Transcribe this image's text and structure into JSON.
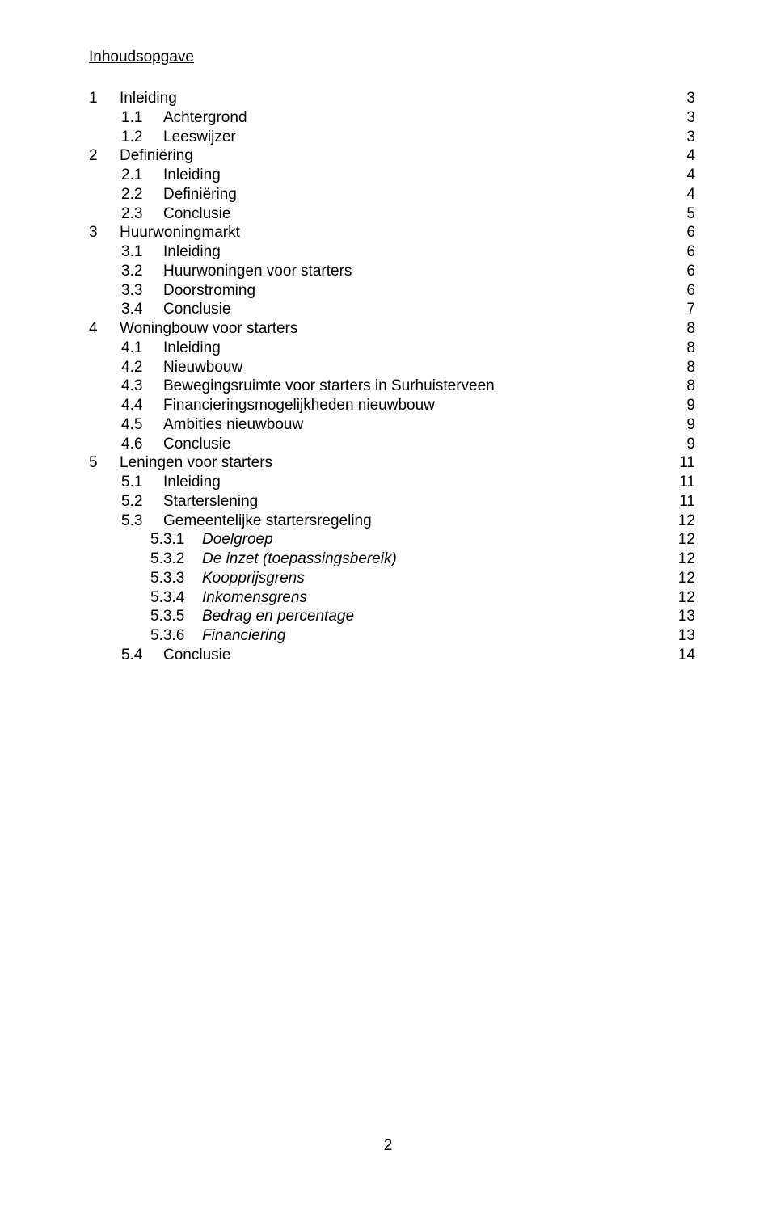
{
  "title": "Inhoudsopgave",
  "page_number": "2",
  "toc": [
    {
      "level": 1,
      "num": "1",
      "label": "Inleiding",
      "page": "3",
      "italic": false
    },
    {
      "level": 2,
      "num": "1.1",
      "label": "Achtergrond",
      "page": "3",
      "italic": false
    },
    {
      "level": 2,
      "num": "1.2",
      "label": "Leeswijzer",
      "page": "3",
      "italic": false
    },
    {
      "level": 1,
      "num": "2",
      "label": "Definiëring",
      "page": "4",
      "italic": false
    },
    {
      "level": 2,
      "num": "2.1",
      "label": "Inleiding",
      "page": "4",
      "italic": false
    },
    {
      "level": 2,
      "num": "2.2",
      "label": "Definiëring",
      "page": "4",
      "italic": false
    },
    {
      "level": 2,
      "num": "2.3",
      "label": "Conclusie",
      "page": "5",
      "italic": false
    },
    {
      "level": 1,
      "num": "3",
      "label": "Huurwoningmarkt",
      "page": "6",
      "italic": false
    },
    {
      "level": 2,
      "num": "3.1",
      "label": "Inleiding",
      "page": "6",
      "italic": false
    },
    {
      "level": 2,
      "num": "3.2",
      "label": "Huurwoningen voor starters",
      "page": "6",
      "italic": false
    },
    {
      "level": 2,
      "num": "3.3",
      "label": "Doorstroming",
      "page": "6",
      "italic": false
    },
    {
      "level": 2,
      "num": "3.4",
      "label": "Conclusie",
      "page": "7",
      "italic": false
    },
    {
      "level": 1,
      "num": "4",
      "label": "Woningbouw voor starters",
      "page": "8",
      "italic": false
    },
    {
      "level": 2,
      "num": "4.1",
      "label": "Inleiding",
      "page": "8",
      "italic": false
    },
    {
      "level": 2,
      "num": "4.2",
      "label": "Nieuwbouw",
      "page": "8",
      "italic": false
    },
    {
      "level": 2,
      "num": "4.3",
      "label": "Bewegingsruimte voor starters in Surhuisterveen",
      "page": "8",
      "italic": false
    },
    {
      "level": 2,
      "num": "4.4",
      "label": "Financieringsmogelijkheden nieuwbouw",
      "page": "9",
      "italic": false
    },
    {
      "level": 2,
      "num": "4.5",
      "label": "Ambities nieuwbouw",
      "page": "9",
      "italic": false
    },
    {
      "level": 2,
      "num": "4.6",
      "label": "Conclusie",
      "page": "9",
      "italic": false
    },
    {
      "level": 1,
      "num": "5",
      "label": "Leningen voor starters",
      "page": "11",
      "italic": false
    },
    {
      "level": 2,
      "num": "5.1",
      "label": "Inleiding",
      "page": "11",
      "italic": false
    },
    {
      "level": 2,
      "num": "5.2",
      "label": "Starterslening",
      "page": "11",
      "italic": false
    },
    {
      "level": 2,
      "num": "5.3",
      "label": "Gemeentelijke startersregeling",
      "page": "12",
      "italic": false
    },
    {
      "level": 3,
      "num": "5.3.1",
      "label": "Doelgroep",
      "page": "12",
      "italic": true
    },
    {
      "level": 3,
      "num": "5.3.2",
      "label": "De inzet (toepassingsbereik)",
      "page": "12",
      "italic": true
    },
    {
      "level": 3,
      "num": "5.3.3",
      "label": "Koopprijsgrens",
      "page": "12",
      "italic": true
    },
    {
      "level": 3,
      "num": "5.3.4",
      "label": "Inkomensgrens",
      "page": "12",
      "italic": true
    },
    {
      "level": 3,
      "num": "5.3.5",
      "label": "Bedrag en percentage",
      "page": "13",
      "italic": true
    },
    {
      "level": 3,
      "num": "5.3.6",
      "label": "Financiering",
      "page": "13",
      "italic": true
    },
    {
      "level": 2,
      "num": "5.4",
      "label": "Conclusie",
      "page": "14",
      "italic": false
    }
  ]
}
